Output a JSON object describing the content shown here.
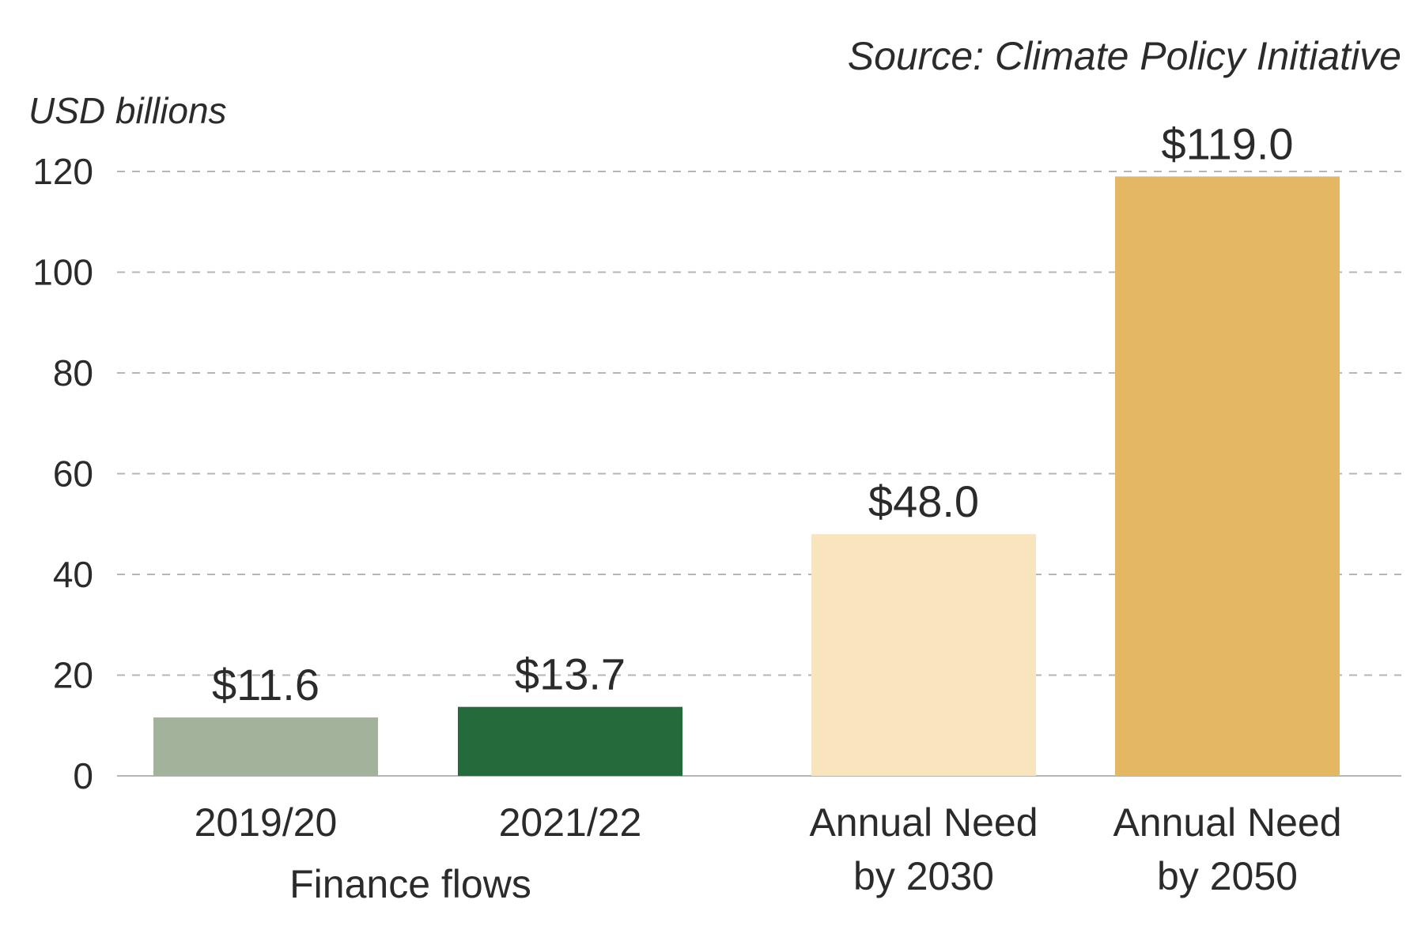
{
  "chart_data": {
    "type": "bar",
    "source": "Source: Climate Policy Initiative",
    "unit_label": "USD billions",
    "ylim": [
      0,
      120
    ],
    "yticks": [
      "0",
      "20",
      "40",
      "60",
      "80",
      "100",
      "120"
    ],
    "grid": true,
    "categories": [
      {
        "lines": [
          "2019/20"
        ],
        "value": 11.6,
        "label": "$11.6",
        "color": "#a3b39b"
      },
      {
        "lines": [
          "2021/22"
        ],
        "value": 13.7,
        "label": "$13.7",
        "color": "#236b3a"
      },
      {
        "lines": [
          "Annual Need",
          "by 2030"
        ],
        "value": 48.0,
        "label": "$48.0",
        "color": "#f8e4bd"
      },
      {
        "lines": [
          "Annual Need",
          "by 2050"
        ],
        "value": 119.0,
        "label": "$119.0",
        "color": "#e4b862"
      }
    ],
    "group_label": "Finance flows"
  }
}
